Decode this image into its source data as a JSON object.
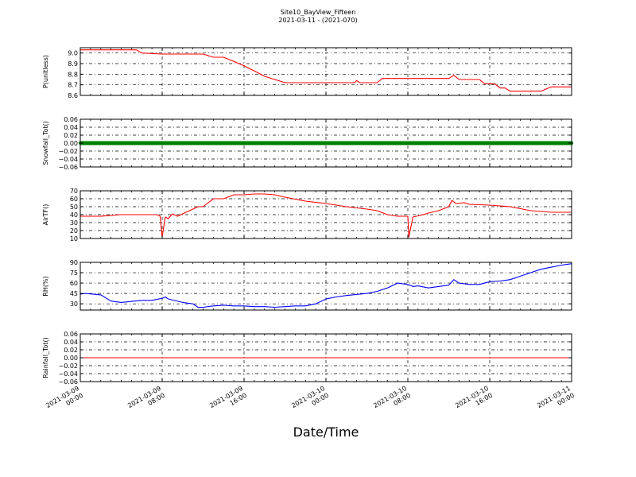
{
  "chart_data": {
    "type": "line",
    "title": "Site10_BayView_Fifteen",
    "subtitle": "2021-03-11 - (2021-070)",
    "xlabel": "Date/Time",
    "x_range": [
      "2021-03-09 00:00",
      "2021-03-11 00:00"
    ],
    "x_ticks": [
      {
        "line1": "2021-03-09",
        "line2": "00:00",
        "hours": 0
      },
      {
        "line1": "2021-03-09",
        "line2": "08:00",
        "hours": 8
      },
      {
        "line1": "2021-03-09",
        "line2": "16:00",
        "hours": 16
      },
      {
        "line1": "2021-03-10",
        "line2": "00:00",
        "hours": 24
      },
      {
        "line1": "2021-03-10",
        "line2": "08:00",
        "hours": 32
      },
      {
        "line1": "2021-03-10",
        "line2": "16:00",
        "hours": 40
      },
      {
        "line1": "2021-03-11",
        "line2": "00:00",
        "hours": 48
      }
    ],
    "grid": true,
    "panels": [
      {
        "ylabel": "P(unitless)",
        "ylim": [
          8.6,
          9.05
        ],
        "yticks": [
          "8.6",
          "8.7",
          "8.8",
          "8.9",
          "9.0"
        ],
        "ytick_values": [
          8.6,
          8.7,
          8.8,
          8.9,
          9.0
        ],
        "color": "#ff0000",
        "points": [
          [
            0,
            9.03
          ],
          [
            3,
            9.03
          ],
          [
            5.5,
            9.03
          ],
          [
            6,
            9.0
          ],
          [
            8,
            8.99
          ],
          [
            10,
            8.99
          ],
          [
            12,
            8.99
          ],
          [
            13,
            8.96
          ],
          [
            14,
            8.96
          ],
          [
            15,
            8.92
          ],
          [
            16,
            8.88
          ],
          [
            17,
            8.83
          ],
          [
            18,
            8.78
          ],
          [
            19,
            8.75
          ],
          [
            20,
            8.72
          ],
          [
            22,
            8.72
          ],
          [
            24,
            8.72
          ],
          [
            26,
            8.72
          ],
          [
            26.8,
            8.72
          ],
          [
            27,
            8.74
          ],
          [
            27.3,
            8.72
          ],
          [
            29,
            8.72
          ],
          [
            29.5,
            8.76
          ],
          [
            32,
            8.76
          ],
          [
            34,
            8.76
          ],
          [
            36,
            8.76
          ],
          [
            36.5,
            8.79
          ],
          [
            37,
            8.75
          ],
          [
            39,
            8.75
          ],
          [
            39.5,
            8.71
          ],
          [
            40.5,
            8.71
          ],
          [
            41,
            8.67
          ],
          [
            41.5,
            8.67
          ],
          [
            42,
            8.64
          ],
          [
            43,
            8.64
          ],
          [
            45,
            8.64
          ],
          [
            46,
            8.68
          ],
          [
            47,
            8.68
          ],
          [
            48,
            8.68
          ]
        ]
      },
      {
        "ylabel": "Snowfall_Tot()",
        "ylim": [
          -0.06,
          0.06
        ],
        "yticks": [
          "−0.06",
          "−0.04",
          "−0.02",
          "0.00",
          "0.02",
          "0.04",
          "0.06"
        ],
        "ytick_values": [
          -0.06,
          -0.04,
          -0.02,
          0.0,
          0.02,
          0.04,
          0.06
        ],
        "color": "#008000",
        "marker": "dots",
        "points": [
          [
            0,
            0
          ],
          [
            48,
            0
          ]
        ]
      },
      {
        "ylabel": "AirTF()",
        "ylim": [
          10,
          70
        ],
        "yticks": [
          "10",
          "20",
          "30",
          "40",
          "50",
          "60",
          "70"
        ],
        "ytick_values": [
          10,
          20,
          30,
          40,
          50,
          60,
          70
        ],
        "color": "#ff0000",
        "points": [
          [
            0,
            38
          ],
          [
            2,
            38
          ],
          [
            4,
            40
          ],
          [
            6,
            40
          ],
          [
            7.5,
            40
          ],
          [
            7.8,
            38
          ],
          [
            8,
            12
          ],
          [
            8.3,
            37
          ],
          [
            8.6,
            35
          ],
          [
            9,
            41
          ],
          [
            9.5,
            38
          ],
          [
            10.5,
            44
          ],
          [
            11.5,
            50
          ],
          [
            12,
            50
          ],
          [
            12.5,
            55
          ],
          [
            13,
            60
          ],
          [
            14,
            60
          ],
          [
            15,
            65
          ],
          [
            16,
            65
          ],
          [
            17,
            66
          ],
          [
            18,
            66
          ],
          [
            19,
            65
          ],
          [
            20,
            62
          ],
          [
            22,
            57
          ],
          [
            24,
            54
          ],
          [
            26,
            50
          ],
          [
            28,
            47
          ],
          [
            29,
            45
          ],
          [
            30,
            40
          ],
          [
            31,
            38
          ],
          [
            32,
            38
          ],
          [
            32.1,
            12
          ],
          [
            32.5,
            37
          ],
          [
            33.5,
            40
          ],
          [
            34,
            42
          ],
          [
            35,
            45
          ],
          [
            36,
            50
          ],
          [
            36.3,
            58
          ],
          [
            36.7,
            54
          ],
          [
            37.5,
            55
          ],
          [
            38,
            53
          ],
          [
            40,
            52
          ],
          [
            42,
            50
          ],
          [
            44,
            45
          ],
          [
            46,
            43
          ],
          [
            48,
            43
          ]
        ]
      },
      {
        "ylabel": "RH(%)",
        "ylim": [
          21,
          90
        ],
        "yticks": [
          "30",
          "45",
          "60",
          "75",
          "90"
        ],
        "ytick_values": [
          30,
          45,
          60,
          75,
          90
        ],
        "color": "#0000ff",
        "points": [
          [
            0,
            44
          ],
          [
            0.5,
            45
          ],
          [
            2,
            43
          ],
          [
            3,
            34
          ],
          [
            4,
            32
          ],
          [
            6,
            35
          ],
          [
            7,
            35
          ],
          [
            8,
            38
          ],
          [
            8.3,
            40
          ],
          [
            8.6,
            37
          ],
          [
            10,
            32
          ],
          [
            11,
            30
          ],
          [
            11.5,
            25
          ],
          [
            12,
            25
          ],
          [
            13,
            27
          ],
          [
            14,
            28
          ],
          [
            15,
            27
          ],
          [
            16,
            27
          ],
          [
            17,
            26
          ],
          [
            18,
            26
          ],
          [
            19,
            25
          ],
          [
            20,
            26
          ],
          [
            21,
            27
          ],
          [
            22,
            27
          ],
          [
            23,
            30
          ],
          [
            24,
            37
          ],
          [
            25,
            40
          ],
          [
            26,
            42
          ],
          [
            28,
            45
          ],
          [
            29,
            48
          ],
          [
            30,
            53
          ],
          [
            31,
            60
          ],
          [
            32,
            58
          ],
          [
            32.5,
            55
          ],
          [
            33,
            56
          ],
          [
            34,
            53
          ],
          [
            35,
            55
          ],
          [
            36,
            57
          ],
          [
            36.5,
            65
          ],
          [
            37,
            60
          ],
          [
            38,
            58
          ],
          [
            39,
            58
          ],
          [
            40,
            62
          ],
          [
            41,
            63
          ],
          [
            42,
            65
          ],
          [
            43,
            70
          ],
          [
            44,
            75
          ],
          [
            45,
            80
          ],
          [
            46,
            83
          ],
          [
            47,
            86
          ],
          [
            48,
            88
          ]
        ]
      },
      {
        "ylabel": "Rainfall_Tot()",
        "ylim": [
          -0.06,
          0.06
        ],
        "yticks": [
          "−0.06",
          "−0.04",
          "−0.02",
          "0.00",
          "0.02",
          "0.04",
          "0.06"
        ],
        "ytick_values": [
          -0.06,
          -0.04,
          -0.02,
          0.0,
          0.02,
          0.04,
          0.06
        ],
        "color": "#ff0000",
        "points": [
          [
            0,
            0
          ],
          [
            48,
            0
          ]
        ]
      }
    ]
  }
}
